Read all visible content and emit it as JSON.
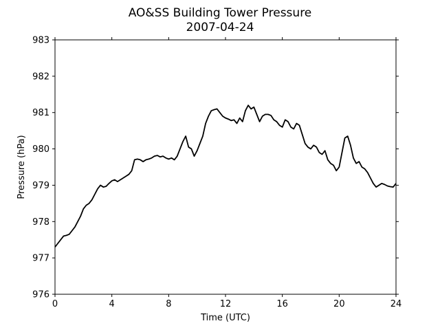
{
  "chart_data": {
    "type": "line",
    "title": "AO&SS Building Tower Pressure",
    "subtitle": "2007-04-24",
    "xlabel": "Time (UTC)",
    "ylabel": "Pressure (hPa)",
    "xlim": [
      0,
      24
    ],
    "ylim": [
      976,
      983
    ],
    "xticks": [
      0,
      4,
      8,
      12,
      16,
      20,
      24
    ],
    "yticks": [
      976,
      977,
      978,
      979,
      980,
      981,
      982,
      983
    ],
    "grid": false,
    "line_color": "#000000",
    "series": [
      {
        "x": [
          0.0,
          0.2,
          0.4,
          0.6,
          0.8,
          1.0,
          1.2,
          1.4,
          1.6,
          1.8,
          2.0,
          2.2,
          2.4,
          2.6,
          2.8,
          3.0,
          3.2,
          3.4,
          3.6,
          3.8,
          4.0,
          4.2,
          4.4,
          4.6,
          4.8,
          5.0,
          5.2,
          5.4,
          5.6,
          5.8,
          6.0,
          6.2,
          6.4,
          6.6,
          6.8,
          7.0,
          7.2,
          7.4,
          7.6,
          7.8,
          8.0,
          8.2,
          8.4,
          8.6,
          8.8,
          9.0,
          9.2,
          9.4,
          9.6,
          9.8,
          10.0,
          10.2,
          10.4,
          10.6,
          10.8,
          11.0,
          11.2,
          11.4,
          11.6,
          11.8,
          12.0,
          12.2,
          12.4,
          12.6,
          12.8,
          13.0,
          13.2,
          13.4,
          13.6,
          13.8,
          14.0,
          14.2,
          14.4,
          14.6,
          14.8,
          15.0,
          15.2,
          15.4,
          15.6,
          15.8,
          16.0,
          16.2,
          16.4,
          16.6,
          16.8,
          17.0,
          17.2,
          17.4,
          17.6,
          17.8,
          18.0,
          18.2,
          18.4,
          18.6,
          18.8,
          19.0,
          19.2,
          19.4,
          19.6,
          19.8,
          20.0,
          20.2,
          20.4,
          20.6,
          20.8,
          21.0,
          21.2,
          21.4,
          21.6,
          21.8,
          22.0,
          22.2,
          22.4,
          22.6,
          22.8,
          23.0,
          23.2,
          23.4,
          23.6,
          23.8,
          24.0
        ],
        "values": [
          977.3,
          977.4,
          977.5,
          977.6,
          977.62,
          977.65,
          977.75,
          977.85,
          978.0,
          978.15,
          978.35,
          978.45,
          978.5,
          978.6,
          978.75,
          978.9,
          979.0,
          978.95,
          978.97,
          979.05,
          979.12,
          979.15,
          979.1,
          979.15,
          979.2,
          979.25,
          979.3,
          979.4,
          979.7,
          979.72,
          979.7,
          979.65,
          979.7,
          979.72,
          979.75,
          979.8,
          979.82,
          979.78,
          979.8,
          979.75,
          979.72,
          979.75,
          979.7,
          979.8,
          980.0,
          980.2,
          980.35,
          980.05,
          980.0,
          979.8,
          979.95,
          980.15,
          980.35,
          980.7,
          980.9,
          981.05,
          981.08,
          981.1,
          981.0,
          980.9,
          980.85,
          980.82,
          980.78,
          980.8,
          980.7,
          980.85,
          980.75,
          981.05,
          981.2,
          981.1,
          981.15,
          980.95,
          980.75,
          980.9,
          980.95,
          980.95,
          980.92,
          980.8,
          980.75,
          980.65,
          980.6,
          980.8,
          980.75,
          980.6,
          980.55,
          980.7,
          980.65,
          980.4,
          980.15,
          980.05,
          980.0,
          980.1,
          980.05,
          979.9,
          979.85,
          979.95,
          979.7,
          979.6,
          979.55,
          979.4,
          979.5,
          979.9,
          980.3,
          980.35,
          980.1,
          979.75,
          979.6,
          979.65,
          979.5,
          979.45,
          979.35,
          979.2,
          979.05,
          978.95,
          979.0,
          979.05,
          979.02,
          978.98,
          978.96,
          978.95,
          979.05
        ]
      }
    ]
  }
}
